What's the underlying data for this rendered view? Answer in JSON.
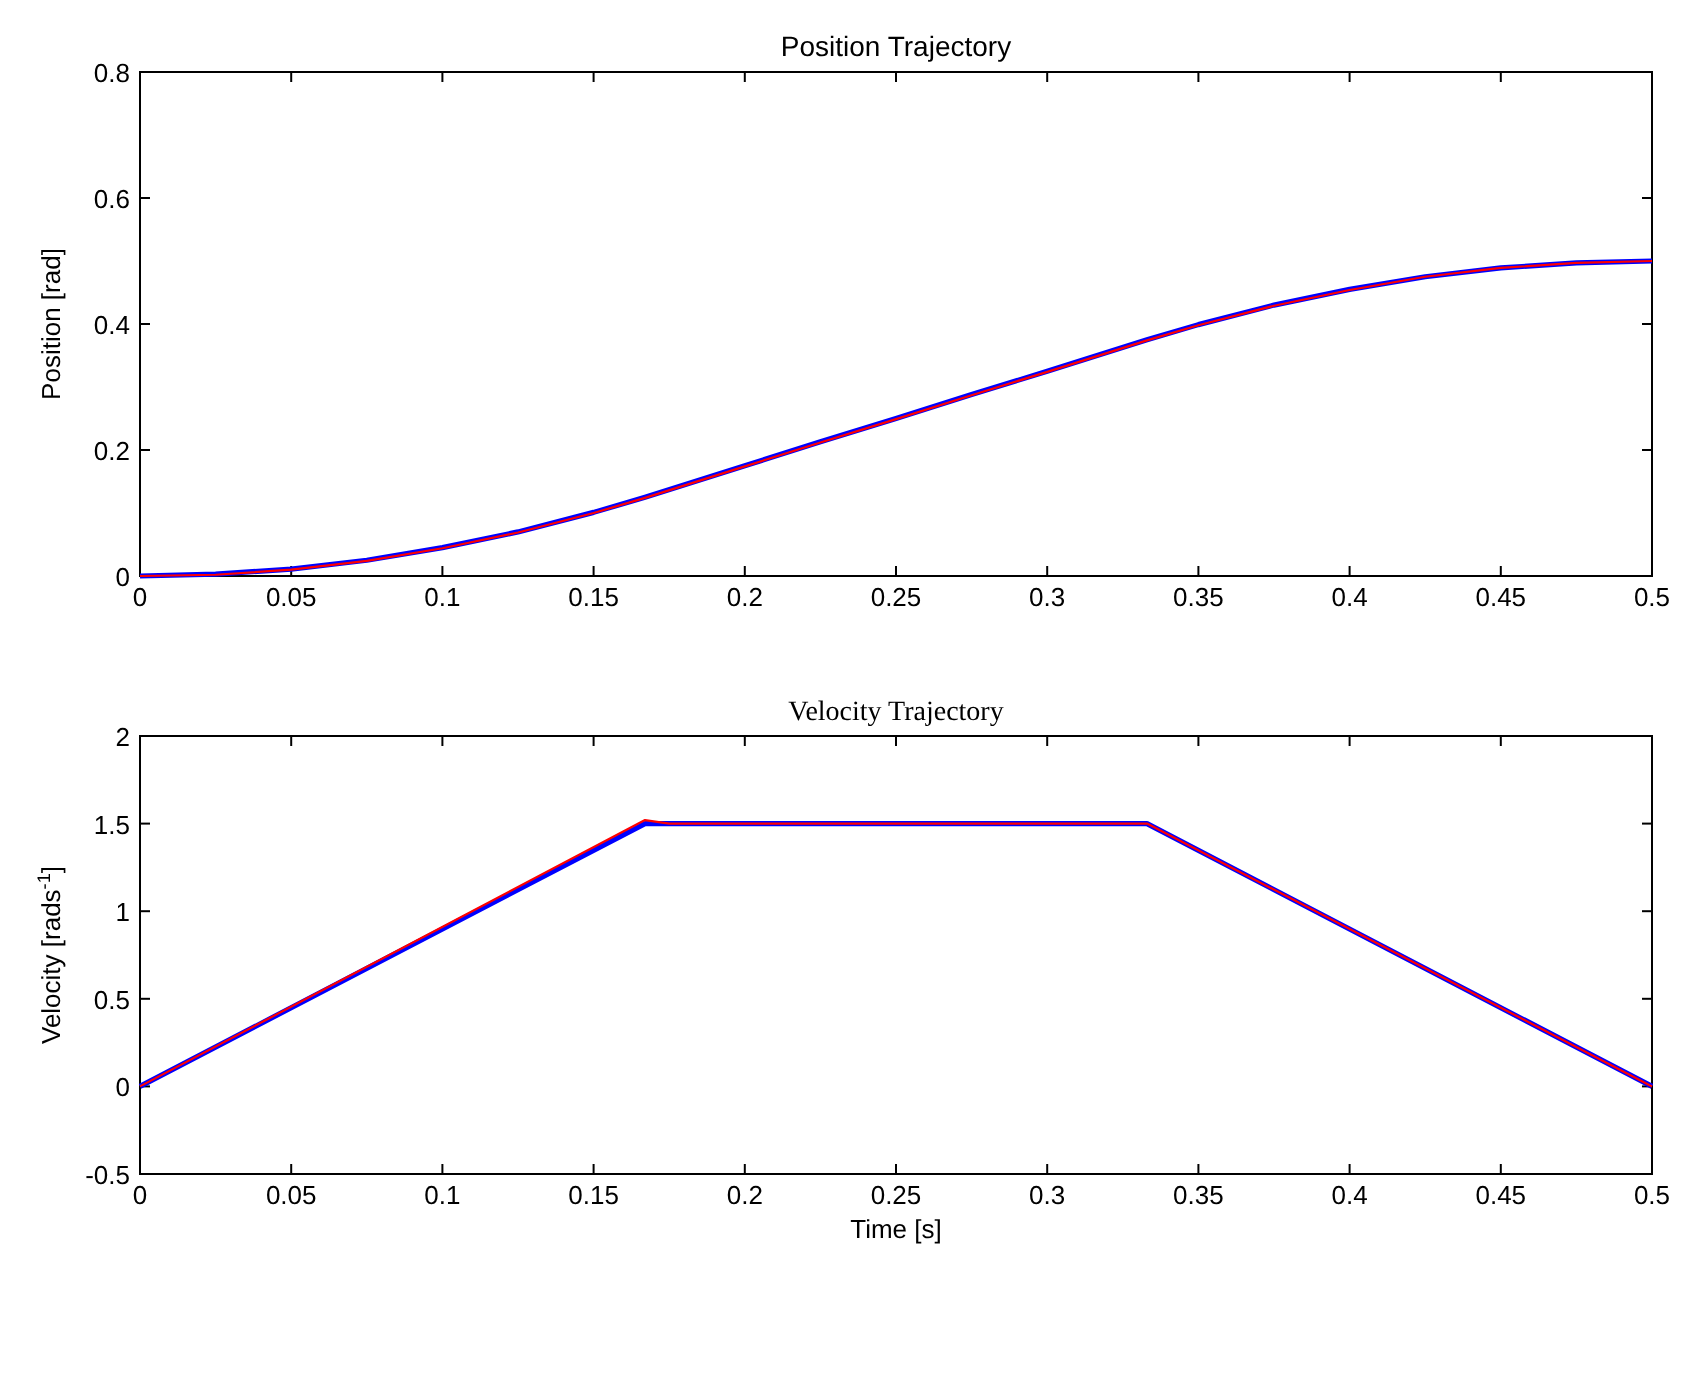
{
  "chart_data": [
    {
      "type": "line",
      "title": "Position Trajectory",
      "ylabel": "Position [rad]",
      "xlim": [
        0,
        0.5
      ],
      "xticks": [
        0,
        0.05,
        0.1,
        0.15,
        0.2,
        0.25,
        0.3,
        0.35,
        0.4,
        0.45,
        0.5
      ],
      "ylim": [
        0,
        0.8
      ],
      "yticks": [
        0,
        0.2,
        0.4,
        0.6,
        0.8
      ],
      "series": [
        {
          "color": "#0000ff",
          "x": [
            0,
            0.025,
            0.05,
            0.075,
            0.1,
            0.125,
            0.15,
            0.167,
            0.2,
            0.225,
            0.25,
            0.275,
            0.3,
            0.333,
            0.35,
            0.375,
            0.4,
            0.425,
            0.45,
            0.475,
            0.5
          ],
          "values": [
            0,
            0.003,
            0.011,
            0.025,
            0.045,
            0.07,
            0.101,
            0.125,
            0.175,
            0.213,
            0.25,
            0.288,
            0.325,
            0.375,
            0.399,
            0.43,
            0.455,
            0.475,
            0.489,
            0.497,
            0.5
          ]
        },
        {
          "color": "#ff0000",
          "x": [
            0,
            0.025,
            0.05,
            0.075,
            0.1,
            0.125,
            0.15,
            0.167,
            0.2,
            0.225,
            0.25,
            0.275,
            0.3,
            0.333,
            0.35,
            0.375,
            0.4,
            0.425,
            0.45,
            0.475,
            0.5
          ],
          "values": [
            0,
            0.002,
            0.01,
            0.024,
            0.044,
            0.069,
            0.1,
            0.124,
            0.174,
            0.212,
            0.249,
            0.287,
            0.324,
            0.374,
            0.398,
            0.429,
            0.454,
            0.475,
            0.489,
            0.497,
            0.5
          ]
        }
      ]
    },
    {
      "type": "line",
      "title": "Velocity Trajectory",
      "xlabel": "Time [s]",
      "ylabel": "Velocity [rads$^{-1}$]",
      "xlim": [
        0,
        0.5
      ],
      "xticks": [
        0,
        0.05,
        0.1,
        0.15,
        0.2,
        0.25,
        0.3,
        0.35,
        0.4,
        0.45,
        0.5
      ],
      "ylim": [
        -0.5,
        2
      ],
      "yticks": [
        -0.5,
        0,
        0.5,
        1,
        1.5,
        2
      ],
      "series": [
        {
          "color": "#0000ff",
          "x": [
            0,
            0.167,
            0.333,
            0.5
          ],
          "values": [
            0,
            1.5,
            1.5,
            0
          ]
        },
        {
          "color": "#ff0000",
          "x": [
            0,
            0.167,
            0.175,
            0.333,
            0.5
          ],
          "values": [
            0,
            1.52,
            1.5,
            1.5,
            0
          ]
        }
      ]
    }
  ]
}
